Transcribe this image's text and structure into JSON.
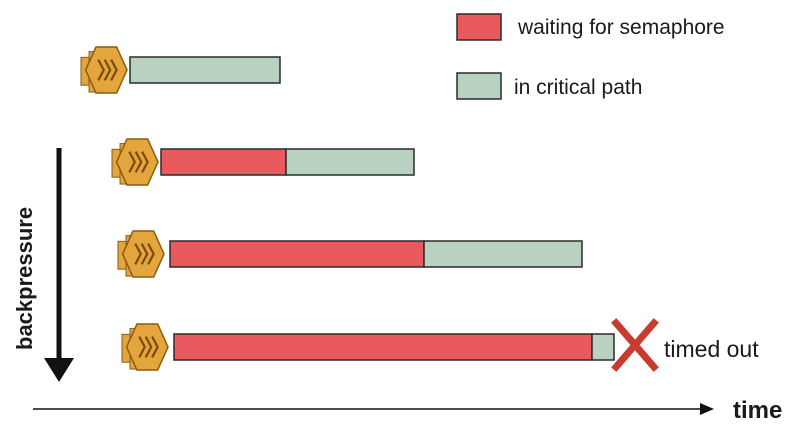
{
  "legend": [
    {
      "label": "waiting for semaphore",
      "color": "#E85A5E"
    },
    {
      "label": "in critical path",
      "color": "#B8D1C0"
    }
  ],
  "axis": {
    "y_label": "backpressure",
    "x_label": "time"
  },
  "rows": [
    {
      "waiting": 0,
      "critical": 150,
      "timed_out": false
    },
    {
      "waiting": 125,
      "critical": 128,
      "timed_out": false
    },
    {
      "waiting": 254,
      "critical": 158,
      "timed_out": false
    },
    {
      "waiting": 418,
      "critical": 22,
      "timed_out": true
    }
  ],
  "timeout_label": "timed out",
  "colors": {
    "waiting": "#E85A5E",
    "critical": "#B8D1C0",
    "bar_border": "#2b2b2b",
    "icon_fill": "#E3A53C",
    "icon_stroke": "#8A5A14",
    "timeout_x": "#C93A2F",
    "arrow": "#111111"
  },
  "icon": "lambda-function-icon"
}
